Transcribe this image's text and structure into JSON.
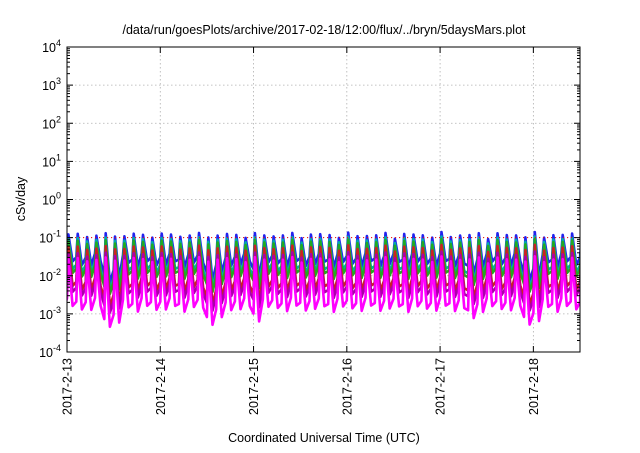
{
  "chart_data": {
    "type": "line",
    "title": "/data/run/goesPlots/archive/2017-02-18/12:00/flux/../bryn/5daysMars.plot",
    "xlabel": "Coordinated Universal Time (UTC)",
    "ylabel": "cSv/day",
    "yscale": "log",
    "ylim": [
      0.0001,
      10000
    ],
    "yticks": [
      {
        "value": 0.0001,
        "base": "10",
        "exp": "-4"
      },
      {
        "value": 0.001,
        "base": "10",
        "exp": "-3"
      },
      {
        "value": 0.01,
        "base": "10",
        "exp": "-2"
      },
      {
        "value": 0.1,
        "base": "10",
        "exp": "-1"
      },
      {
        "value": 1,
        "base": "10",
        "exp": "0"
      },
      {
        "value": 10,
        "base": "10",
        "exp": "1"
      },
      {
        "value": 100,
        "base": "10",
        "exp": "2"
      },
      {
        "value": 1000,
        "base": "10",
        "exp": "3"
      },
      {
        "value": 10000,
        "base": "10",
        "exp": "4"
      }
    ],
    "xlim": [
      "2017-02-13 00:00",
      "2017-02-18 12:00"
    ],
    "xticks": [
      {
        "x": "2017-02-13 00:00",
        "label": "2017-2-13"
      },
      {
        "x": "2017-02-14 00:00",
        "label": "2017-2-14"
      },
      {
        "x": "2017-02-15 00:00",
        "label": "2017-2-15"
      },
      {
        "x": "2017-02-16 00:00",
        "label": "2017-2-16"
      },
      {
        "x": "2017-02-17 00:00",
        "label": "2017-2-17"
      },
      {
        "x": "2017-02-18 00:00",
        "label": "2017-2-18"
      }
    ],
    "grid": true,
    "reference_line": {
      "y": 0.1,
      "color": "#ff0000",
      "style": "dotted"
    },
    "cycle_hours": 2.4,
    "trough_dips": [
      {
        "x": "2017-02-13 12:00",
        "depth": 0.4
      },
      {
        "x": "2017-02-14 14:00",
        "depth": 0.35
      },
      {
        "x": "2017-02-14 16:00",
        "depth": 0.3
      },
      {
        "x": "2017-02-15 02:00",
        "depth": 0.25
      },
      {
        "x": "2017-02-17 09:00",
        "depth": 0.3
      },
      {
        "x": "2017-02-18 00:00",
        "depth": 0.35
      }
    ],
    "series": [
      {
        "color": "#2222ee",
        "peak": 0.13,
        "trough": 0.022
      },
      {
        "color": "#00aaaa",
        "peak": 0.1,
        "trough": 0.014
      },
      {
        "color": "#22aa22",
        "peak": 0.085,
        "trough": 0.011
      },
      {
        "color": "#cc2222",
        "peak": 0.06,
        "trough": 0.005
      },
      {
        "color": "#aa00aa",
        "peak": 0.04,
        "trough": 0.0035
      },
      {
        "color": "#ff00ff",
        "peak": 0.03,
        "trough": 0.0015
      }
    ]
  }
}
